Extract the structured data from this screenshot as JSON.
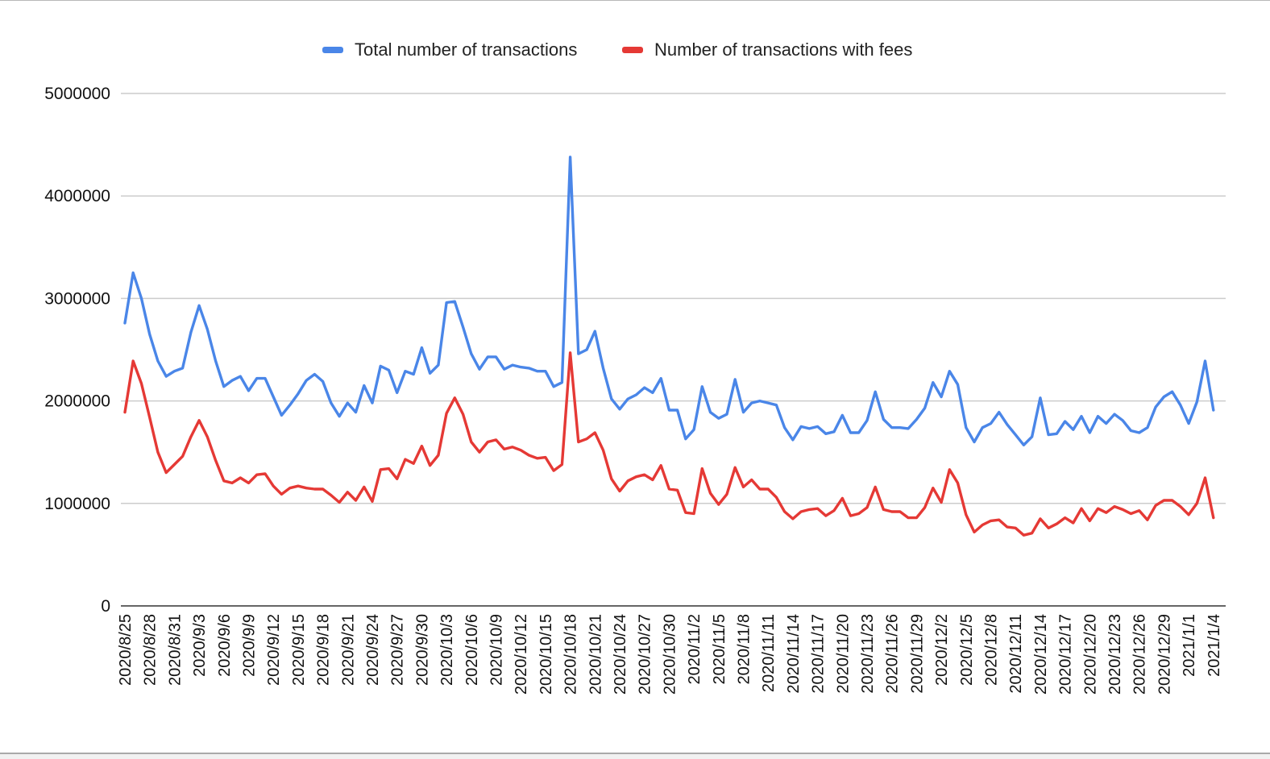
{
  "chart_data": {
    "type": "line",
    "title": "",
    "xlabel": "",
    "ylabel": "",
    "ylim": [
      0,
      5000000
    ],
    "yticks": [
      "0",
      "1000000",
      "2000000",
      "3000000",
      "4000000",
      "5000000"
    ],
    "grid": true,
    "legend_position": "top",
    "x_tick_labels": [
      "2020/8/25",
      "2020/8/28",
      "2020/8/31",
      "2020/9/3",
      "2020/9/6",
      "2020/9/9",
      "2020/9/12",
      "2020/9/15",
      "2020/9/18",
      "2020/9/21",
      "2020/9/24",
      "2020/9/27",
      "2020/9/30",
      "2020/10/3",
      "2020/10/6",
      "2020/10/9",
      "2020/10/12",
      "2020/10/15",
      "2020/10/18",
      "2020/10/21",
      "2020/10/24",
      "2020/10/27",
      "2020/10/30",
      "2020/11/2",
      "2020/11/5",
      "2020/11/8",
      "2020/11/11",
      "2020/11/14",
      "2020/11/17",
      "2020/11/20",
      "2020/11/23",
      "2020/11/26",
      "2020/11/29",
      "2020/12/2",
      "2020/12/5",
      "2020/12/8",
      "2020/12/11",
      "2020/12/14",
      "2020/12/17",
      "2020/12/20",
      "2020/12/23",
      "2020/12/26",
      "2020/12/29",
      "2021/1/1",
      "2021/1/4"
    ],
    "x_start": "2020-08-25",
    "x_end": "2021-01-05",
    "series": [
      {
        "name": "Total number of transactions",
        "color": "#4a86e8",
        "values": [
          2760000,
          3250000,
          3000000,
          2650000,
          2390000,
          2240000,
          2290000,
          2320000,
          2670000,
          2930000,
          2700000,
          2390000,
          2140000,
          2200000,
          2240000,
          2100000,
          2220000,
          2220000,
          2040000,
          1860000,
          1960000,
          2070000,
          2200000,
          2260000,
          2190000,
          1980000,
          1850000,
          1980000,
          1890000,
          2150000,
          1980000,
          2340000,
          2300000,
          2080000,
          2290000,
          2260000,
          2520000,
          2270000,
          2350000,
          2960000,
          2970000,
          2720000,
          2460000,
          2310000,
          2430000,
          2430000,
          2310000,
          2350000,
          2330000,
          2320000,
          2290000,
          2290000,
          2140000,
          2180000,
          4380000,
          2460000,
          2500000,
          2680000,
          2320000,
          2020000,
          1920000,
          2020000,
          2060000,
          2130000,
          2080000,
          2220000,
          1910000,
          1910000,
          1630000,
          1720000,
          2140000,
          1890000,
          1830000,
          1870000,
          2210000,
          1890000,
          1980000,
          2000000,
          1980000,
          1960000,
          1740000,
          1620000,
          1750000,
          1730000,
          1750000,
          1680000,
          1700000,
          1860000,
          1690000,
          1690000,
          1810000,
          2090000,
          1820000,
          1740000,
          1740000,
          1730000,
          1820000,
          1930000,
          2180000,
          2040000,
          2290000,
          2160000,
          1740000,
          1600000,
          1740000,
          1780000,
          1890000,
          1770000,
          1670000,
          1570000,
          1650000,
          2030000,
          1670000,
          1680000,
          1800000,
          1720000,
          1850000,
          1690000,
          1850000,
          1780000,
          1870000,
          1810000,
          1710000,
          1690000,
          1740000,
          1940000,
          2040000,
          2090000,
          1960000,
          1780000,
          1990000,
          2390000,
          1910000
        ]
      },
      {
        "name": "Number of transactions with fees",
        "color": "#e53935",
        "values": [
          1890000,
          2390000,
          2170000,
          1840000,
          1500000,
          1300000,
          1380000,
          1460000,
          1650000,
          1810000,
          1650000,
          1420000,
          1220000,
          1200000,
          1250000,
          1200000,
          1280000,
          1290000,
          1170000,
          1090000,
          1150000,
          1170000,
          1150000,
          1140000,
          1140000,
          1080000,
          1010000,
          1110000,
          1030000,
          1160000,
          1020000,
          1330000,
          1340000,
          1240000,
          1430000,
          1390000,
          1560000,
          1370000,
          1470000,
          1880000,
          2030000,
          1870000,
          1600000,
          1500000,
          1600000,
          1620000,
          1530000,
          1550000,
          1520000,
          1470000,
          1440000,
          1450000,
          1320000,
          1380000,
          2470000,
          1600000,
          1630000,
          1690000,
          1520000,
          1240000,
          1120000,
          1220000,
          1260000,
          1280000,
          1230000,
          1370000,
          1140000,
          1130000,
          910000,
          900000,
          1340000,
          1100000,
          990000,
          1090000,
          1350000,
          1160000,
          1230000,
          1140000,
          1140000,
          1060000,
          920000,
          850000,
          920000,
          940000,
          950000,
          880000,
          930000,
          1050000,
          880000,
          900000,
          960000,
          1160000,
          940000,
          920000,
          920000,
          860000,
          860000,
          960000,
          1150000,
          1010000,
          1330000,
          1200000,
          890000,
          720000,
          790000,
          830000,
          840000,
          770000,
          760000,
          690000,
          710000,
          850000,
          760000,
          800000,
          860000,
          810000,
          950000,
          830000,
          950000,
          910000,
          970000,
          940000,
          900000,
          930000,
          840000,
          980000,
          1030000,
          1030000,
          970000,
          890000,
          1000000,
          1250000,
          860000
        ]
      }
    ]
  }
}
